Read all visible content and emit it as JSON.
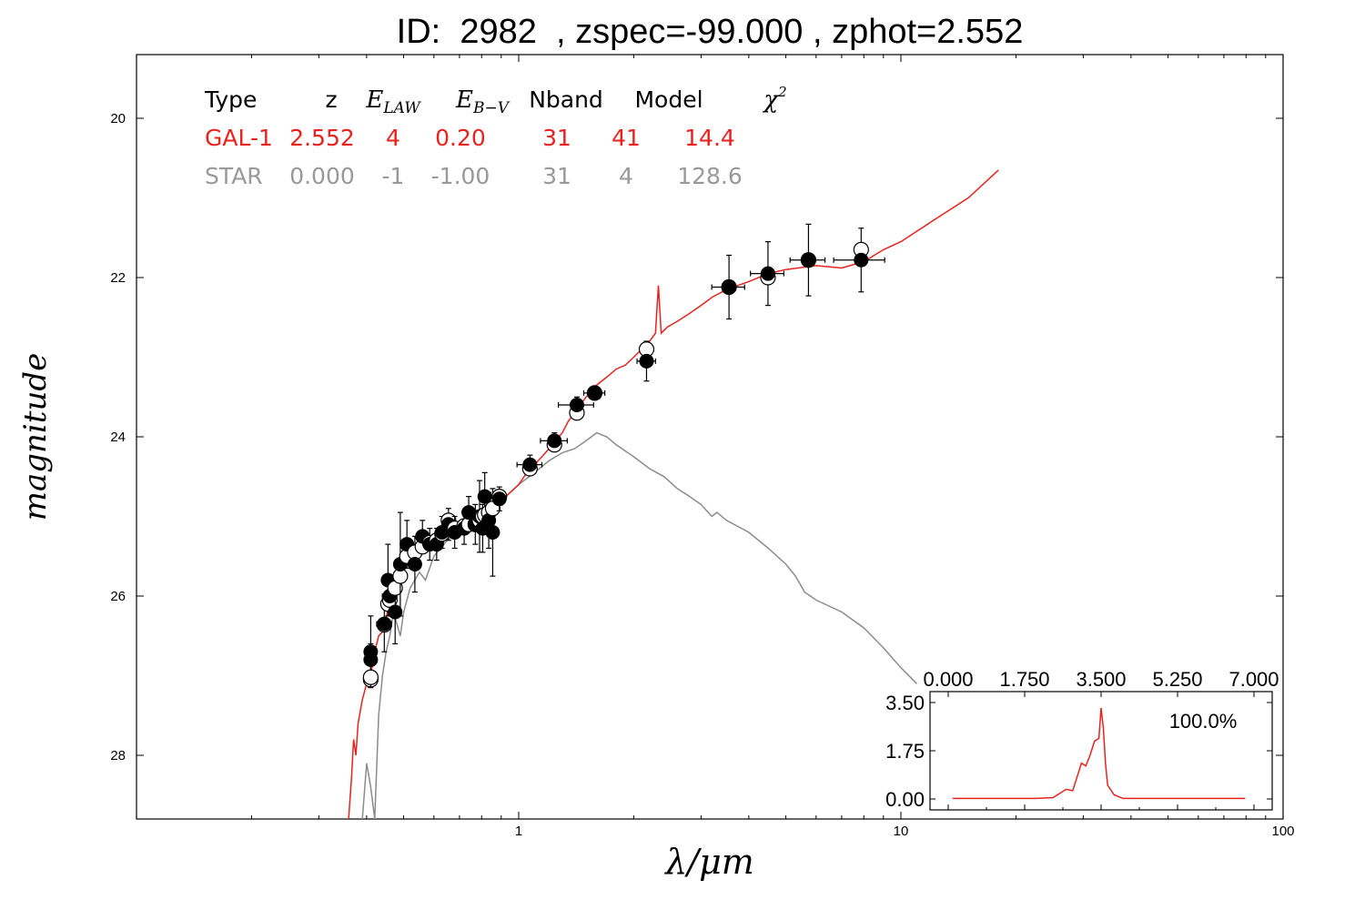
{
  "title": "ID:  2982  , zspec=-99.000 , zphot=2.552",
  "chart_data": [
    {
      "type": "line",
      "xlabel": "λ/μm",
      "ylabel": "magnitude",
      "x_scale": "log",
      "xlim": [
        0.1,
        100
      ],
      "ylim": [
        28.8,
        19.2
      ],
      "x_ticks": [
        {
          "value": 1,
          "label": "1"
        },
        {
          "value": 10,
          "label": "10"
        },
        {
          "value": 100,
          "label": "100"
        }
      ],
      "y_ticks": [
        {
          "value": 20,
          "label": "20"
        },
        {
          "value": 22,
          "label": "22"
        },
        {
          "value": 24,
          "label": "24"
        },
        {
          "value": 26,
          "label": "26"
        },
        {
          "value": 28,
          "label": "28"
        }
      ],
      "fit_table": {
        "headers": [
          "Type",
          "z",
          "E_LAW",
          "E_B−V",
          "Nband",
          "Model",
          "χ²"
        ],
        "rows": [
          {
            "cells": [
              "GAL-1",
              "2.552",
              "4",
              "0.20",
              "31",
              "41",
              "14.4"
            ],
            "color": "#e8231f"
          },
          {
            "cells": [
              "STAR",
              "0.000",
              "-1",
              "-1.00",
              "31",
              "4",
              "128.6"
            ],
            "color": "#999999"
          }
        ]
      },
      "series": [
        {
          "name": "GAL-1",
          "color": "#e8231f",
          "points": [
            [
              0.359,
              28.8
            ],
            [
              0.365,
              28.3
            ],
            [
              0.37,
              27.8
            ],
            [
              0.375,
              28.0
            ],
            [
              0.38,
              27.6
            ],
            [
              0.39,
              27.3
            ],
            [
              0.4,
              27.1
            ],
            [
              0.41,
              27.0
            ],
            [
              0.42,
              26.7
            ],
            [
              0.43,
              26.5
            ],
            [
              0.44,
              26.45
            ],
            [
              0.45,
              26.3
            ],
            [
              0.46,
              26.0
            ],
            [
              0.48,
              25.85
            ],
            [
              0.5,
              25.6
            ],
            [
              0.52,
              25.5
            ],
            [
              0.55,
              25.4
            ],
            [
              0.6,
              25.3
            ],
            [
              0.65,
              25.15
            ],
            [
              0.7,
              25.1
            ],
            [
              0.75,
              25.05
            ],
            [
              0.8,
              24.98
            ],
            [
              0.85,
              24.9
            ],
            [
              0.9,
              24.8
            ],
            [
              0.95,
              24.7
            ],
            [
              1.0,
              24.6
            ],
            [
              1.05,
              24.45
            ],
            [
              1.1,
              24.35
            ],
            [
              1.15,
              24.25
            ],
            [
              1.2,
              24.15
            ],
            [
              1.25,
              24.05
            ],
            [
              1.3,
              23.95
            ],
            [
              1.35,
              23.8
            ],
            [
              1.4,
              23.7
            ],
            [
              1.45,
              23.6
            ],
            [
              1.5,
              23.5
            ],
            [
              1.6,
              23.35
            ],
            [
              1.7,
              23.25
            ],
            [
              1.8,
              23.15
            ],
            [
              1.9,
              23.1
            ],
            [
              2.0,
              23.0
            ],
            [
              2.1,
              22.9
            ],
            [
              2.2,
              22.8
            ],
            [
              2.28,
              22.7
            ],
            [
              2.32,
              22.1
            ],
            [
              2.36,
              22.7
            ],
            [
              2.45,
              22.62
            ],
            [
              2.6,
              22.55
            ],
            [
              2.8,
              22.45
            ],
            [
              3.0,
              22.35
            ],
            [
              3.2,
              22.25
            ],
            [
              3.5,
              22.15
            ],
            [
              4.0,
              22.05
            ],
            [
              4.5,
              21.95
            ],
            [
              5.0,
              21.9
            ],
            [
              6.0,
              21.85
            ],
            [
              7.0,
              21.88
            ],
            [
              8.0,
              21.8
            ],
            [
              9.0,
              21.65
            ],
            [
              10.0,
              21.55
            ],
            [
              12.0,
              21.3
            ],
            [
              15.0,
              21.0
            ],
            [
              18.0,
              20.65
            ]
          ]
        },
        {
          "name": "STAR",
          "color": "#8c8c8c",
          "points": [
            [
              0.39,
              28.8
            ],
            [
              0.4,
              28.1
            ],
            [
              0.41,
              28.4
            ],
            [
              0.42,
              28.8
            ],
            [
              0.43,
              27.5
            ],
            [
              0.44,
              27.0
            ],
            [
              0.45,
              26.7
            ],
            [
              0.46,
              26.5
            ],
            [
              0.47,
              26.2
            ],
            [
              0.48,
              26.35
            ],
            [
              0.49,
              26.5
            ],
            [
              0.5,
              26.2
            ],
            [
              0.52,
              25.9
            ],
            [
              0.55,
              25.7
            ],
            [
              0.57,
              25.8
            ],
            [
              0.6,
              25.5
            ],
            [
              0.65,
              25.3
            ],
            [
              0.7,
              25.2
            ],
            [
              0.8,
              25.0
            ],
            [
              0.9,
              24.8
            ],
            [
              1.0,
              24.6
            ],
            [
              1.1,
              24.45
            ],
            [
              1.2,
              24.3
            ],
            [
              1.3,
              24.2
            ],
            [
              1.4,
              24.15
            ],
            [
              1.5,
              24.05
            ],
            [
              1.6,
              23.95
            ],
            [
              1.7,
              24.0
            ],
            [
              1.8,
              24.1
            ],
            [
              2.0,
              24.25
            ],
            [
              2.2,
              24.4
            ],
            [
              2.4,
              24.5
            ],
            [
              2.6,
              24.65
            ],
            [
              2.8,
              24.75
            ],
            [
              3.0,
              24.85
            ],
            [
              3.2,
              25.0
            ],
            [
              3.3,
              24.95
            ],
            [
              3.5,
              25.05
            ],
            [
              4.0,
              25.2
            ],
            [
              4.5,
              25.4
            ],
            [
              5.0,
              25.6
            ],
            [
              5.3,
              25.75
            ],
            [
              5.6,
              25.95
            ],
            [
              6.0,
              26.05
            ],
            [
              7.0,
              26.2
            ],
            [
              8.0,
              26.4
            ],
            [
              9.0,
              26.65
            ],
            [
              10.0,
              26.9
            ],
            [
              11.0,
              27.1
            ]
          ]
        }
      ],
      "observed_points": [
        {
          "x": 0.41,
          "y": 26.8,
          "yerr": 0.2,
          "xerr": 0.008,
          "model": 27.05
        },
        {
          "x": 0.41,
          "y": 26.7,
          "yerr": 0.45,
          "xerr": 0.01,
          "model": 27.02
        },
        {
          "x": 0.445,
          "y": 26.35,
          "yerr": 0.35,
          "xerr": 0.02,
          "model": 26.36
        },
        {
          "x": 0.455,
          "y": 25.8,
          "yerr": 0.45,
          "xerr": 0.012,
          "model": 26.1
        },
        {
          "x": 0.46,
          "y": 26.0,
          "yerr": 0.25,
          "xerr": 0.02,
          "model": 26.05
        },
        {
          "x": 0.475,
          "y": 26.2,
          "yerr": 0.4,
          "xerr": 0.012,
          "model": 25.9
        },
        {
          "x": 0.49,
          "y": 25.6,
          "yerr": 0.65,
          "xerr": 0.012,
          "model": 25.75
        },
        {
          "x": 0.51,
          "y": 25.35,
          "yerr": 0.3,
          "xerr": 0.015,
          "model": 25.5
        },
        {
          "x": 0.535,
          "y": 25.6,
          "yerr": 0.35,
          "xerr": 0.015,
          "model": 25.45
        },
        {
          "x": 0.56,
          "y": 25.25,
          "yerr": 0.2,
          "xerr": 0.015,
          "model": 25.38
        },
        {
          "x": 0.585,
          "y": 25.35,
          "yerr": 0.2,
          "xerr": 0.015,
          "model": 25.33
        },
        {
          "x": 0.61,
          "y": 25.35,
          "yerr": 0.2,
          "xerr": 0.015,
          "model": 25.3
        },
        {
          "x": 0.63,
          "y": 25.2,
          "yerr": 0.2,
          "xerr": 0.015,
          "model": 25.22
        },
        {
          "x": 0.655,
          "y": 25.1,
          "yerr": 0.2,
          "xerr": 0.02,
          "model": 25.05
        },
        {
          "x": 0.68,
          "y": 25.2,
          "yerr": 0.2,
          "xerr": 0.02,
          "model": 25.15
        },
        {
          "x": 0.72,
          "y": 25.15,
          "yerr": 0.2,
          "xerr": 0.02,
          "model": 25.12
        },
        {
          "x": 0.74,
          "y": 24.95,
          "yerr": 0.2,
          "xerr": 0.02,
          "model": 25.1
        },
        {
          "x": 0.77,
          "y": 25.1,
          "yerr": 0.25,
          "xerr": 0.02,
          "model": 25.1
        },
        {
          "x": 0.79,
          "y": 25.0,
          "yerr": 0.45,
          "xerr": 0.02,
          "model": 25.05
        },
        {
          "x": 0.805,
          "y": 25.15,
          "yerr": 0.3,
          "xerr": 0.02,
          "model": 25.0
        },
        {
          "x": 0.815,
          "y": 24.75,
          "yerr": 0.3,
          "xerr": 0.02,
          "model": 24.98
        },
        {
          "x": 0.835,
          "y": 25.05,
          "yerr": 0.35,
          "xerr": 0.02,
          "model": 24.95
        },
        {
          "x": 0.855,
          "y": 25.2,
          "yerr": 0.55,
          "xerr": 0.02,
          "model": 24.9
        },
        {
          "x": 0.89,
          "y": 24.78,
          "yerr": 0.15,
          "xerr": 0.03,
          "model": 24.75
        },
        {
          "x": 1.07,
          "y": 24.35,
          "yerr": 0.12,
          "xerr": 0.08,
          "model": 24.4
        },
        {
          "x": 1.24,
          "y": 24.05,
          "yerr": 0.1,
          "xerr": 0.1,
          "model": 24.1
        },
        {
          "x": 1.42,
          "y": 23.6,
          "yerr": 0.1,
          "xerr": 0.15,
          "model": 23.7
        },
        {
          "x": 1.58,
          "y": 23.45,
          "yerr": 0.08,
          "xerr": 0.1,
          "model": 23.45
        },
        {
          "x": 2.16,
          "y": 23.05,
          "yerr": 0.25,
          "xerr": 0.12,
          "model": 22.9
        },
        {
          "x": 3.55,
          "y": 22.12,
          "yerr": 0.4,
          "xerr": 0.35,
          "model": 22.12
        },
        {
          "x": 4.49,
          "y": 21.95,
          "yerr": 0.4,
          "xerr": 0.45,
          "model": 22.0
        },
        {
          "x": 5.73,
          "y": 21.78,
          "yerr": 0.45,
          "xerr": 0.6,
          "model": 21.78
        },
        {
          "x": 7.87,
          "y": 21.78,
          "yerr": 0.4,
          "xerr": 1.2,
          "model": 21.65
        }
      ]
    },
    {
      "type": "line",
      "title": "",
      "xlim": [
        0,
        7
      ],
      "ylim": [
        0,
        3.5
      ],
      "x_ticks": [
        "0.000",
        "1.750",
        "3.500",
        "5.250",
        "7.000"
      ],
      "y_ticks": [
        "0.00",
        "1.75",
        "3.50"
      ],
      "annotation": "100.0%",
      "series": [
        {
          "name": "PDF",
          "color": "#e8231f",
          "points": [
            [
              0.1,
              0.02
            ],
            [
              1.0,
              0.02
            ],
            [
              2.0,
              0.02
            ],
            [
              2.4,
              0.05
            ],
            [
              2.5,
              0.15
            ],
            [
              2.7,
              0.35
            ],
            [
              2.85,
              0.3
            ],
            [
              2.95,
              0.8
            ],
            [
              3.05,
              1.3
            ],
            [
              3.15,
              1.2
            ],
            [
              3.25,
              1.6
            ],
            [
              3.35,
              2.1
            ],
            [
              3.45,
              2.2
            ],
            [
              3.5,
              3.3
            ],
            [
              3.55,
              2.6
            ],
            [
              3.6,
              1.3
            ],
            [
              3.65,
              0.5
            ],
            [
              3.8,
              0.15
            ],
            [
              4.0,
              0.02
            ],
            [
              5.0,
              0.02
            ],
            [
              6.0,
              0.02
            ],
            [
              6.8,
              0.02
            ]
          ]
        }
      ]
    }
  ]
}
